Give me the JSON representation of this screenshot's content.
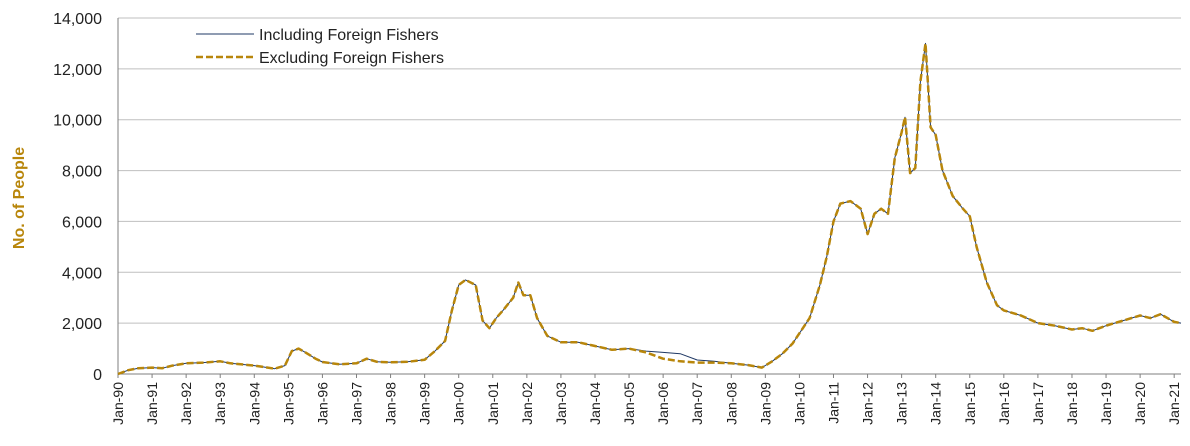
{
  "chart_data": {
    "type": "line",
    "title": "",
    "xlabel": "",
    "ylabel": "No. of People",
    "ylim": [
      0,
      14000
    ],
    "yticks": [
      "0",
      "2,000",
      "4,000",
      "6,000",
      "8,000",
      "10,000",
      "12,000",
      "14,000"
    ],
    "xticks": [
      "Jan-90",
      "Jan-91",
      "Jan-92",
      "Jan-93",
      "Jan-94",
      "Jan-95",
      "Jan-96",
      "Jan-97",
      "Jan-98",
      "Jan-99",
      "Jan-00",
      "Jan-01",
      "Jan-02",
      "Jan-03",
      "Jan-04",
      "Jan-05",
      "Jan-06",
      "Jan-07",
      "Jan-08",
      "Jan-09",
      "Jan-10",
      "Jan-11",
      "Jan-12",
      "Jan-13",
      "Jan-14",
      "Jan-15",
      "Jan-16",
      "Jan-17",
      "Jan-18",
      "Jan-19",
      "Jan-20",
      "Jan-21"
    ],
    "grid": true,
    "legend_position": "top-left",
    "series": [
      {
        "name": "Including Foreign Fishers",
        "color": "#1f3864",
        "style": "solid",
        "points": [
          [
            1990.0,
            0
          ],
          [
            1990.3,
            150
          ],
          [
            1990.6,
            230
          ],
          [
            1991.0,
            250
          ],
          [
            1991.3,
            230
          ],
          [
            1991.6,
            330
          ],
          [
            1992.0,
            420
          ],
          [
            1992.5,
            450
          ],
          [
            1993.0,
            500
          ],
          [
            1993.3,
            420
          ],
          [
            1993.6,
            380
          ],
          [
            1994.0,
            330
          ],
          [
            1994.3,
            270
          ],
          [
            1994.6,
            210
          ],
          [
            1994.9,
            330
          ],
          [
            1995.1,
            900
          ],
          [
            1995.3,
            1000
          ],
          [
            1995.5,
            850
          ],
          [
            1995.8,
            600
          ],
          [
            1996.0,
            470
          ],
          [
            1996.5,
            380
          ],
          [
            1997.0,
            420
          ],
          [
            1997.3,
            600
          ],
          [
            1997.6,
            480
          ],
          [
            1998.0,
            460
          ],
          [
            1998.5,
            480
          ],
          [
            1999.0,
            560
          ],
          [
            1999.3,
            900
          ],
          [
            1999.6,
            1300
          ],
          [
            1999.8,
            2500
          ],
          [
            2000.0,
            3500
          ],
          [
            2000.2,
            3700
          ],
          [
            2000.5,
            3500
          ],
          [
            2000.7,
            2100
          ],
          [
            2000.9,
            1800
          ],
          [
            2001.1,
            2200
          ],
          [
            2001.3,
            2500
          ],
          [
            2001.6,
            3000
          ],
          [
            2001.75,
            3600
          ],
          [
            2001.9,
            3100
          ],
          [
            2002.1,
            3100
          ],
          [
            2002.3,
            2200
          ],
          [
            2002.6,
            1500
          ],
          [
            2003.0,
            1250
          ],
          [
            2003.5,
            1250
          ],
          [
            2004.0,
            1100
          ],
          [
            2004.5,
            950
          ],
          [
            2005.0,
            1000
          ],
          [
            2005.5,
            900
          ],
          [
            2006.0,
            850
          ],
          [
            2006.5,
            800
          ],
          [
            2007.0,
            550
          ],
          [
            2007.5,
            500
          ],
          [
            2008.0,
            420
          ],
          [
            2008.5,
            350
          ],
          [
            2008.9,
            250
          ],
          [
            2009.2,
            500
          ],
          [
            2009.5,
            800
          ],
          [
            2009.8,
            1200
          ],
          [
            2010.0,
            1600
          ],
          [
            2010.3,
            2200
          ],
          [
            2010.6,
            3500
          ],
          [
            2010.8,
            4600
          ],
          [
            2011.0,
            6000
          ],
          [
            2011.2,
            6700
          ],
          [
            2011.5,
            6800
          ],
          [
            2011.8,
            6500
          ],
          [
            2012.0,
            5500
          ],
          [
            2012.2,
            6300
          ],
          [
            2012.4,
            6500
          ],
          [
            2012.6,
            6300
          ],
          [
            2012.8,
            8500
          ],
          [
            2013.0,
            9500
          ],
          [
            2013.1,
            10100
          ],
          [
            2013.25,
            7900
          ],
          [
            2013.4,
            8100
          ],
          [
            2013.55,
            11500
          ],
          [
            2013.7,
            13000
          ],
          [
            2013.85,
            9700
          ],
          [
            2014.0,
            9400
          ],
          [
            2014.2,
            8000
          ],
          [
            2014.5,
            7000
          ],
          [
            2014.8,
            6500
          ],
          [
            2015.0,
            6200
          ],
          [
            2015.2,
            5000
          ],
          [
            2015.5,
            3600
          ],
          [
            2015.8,
            2700
          ],
          [
            2016.0,
            2500
          ],
          [
            2016.5,
            2300
          ],
          [
            2017.0,
            2000
          ],
          [
            2017.5,
            1900
          ],
          [
            2018.0,
            1750
          ],
          [
            2018.3,
            1800
          ],
          [
            2018.6,
            1700
          ],
          [
            2019.0,
            1900
          ],
          [
            2019.5,
            2100
          ],
          [
            2020.0,
            2300
          ],
          [
            2020.3,
            2200
          ],
          [
            2020.6,
            2350
          ],
          [
            2021.0,
            2050
          ],
          [
            2021.2,
            2000
          ]
        ]
      },
      {
        "name": "Excluding Foreign Fishers",
        "color": "#b8860b",
        "style": "dashed",
        "points": [
          [
            1990.0,
            0
          ],
          [
            1990.3,
            150
          ],
          [
            1990.6,
            230
          ],
          [
            1991.0,
            250
          ],
          [
            1991.3,
            230
          ],
          [
            1991.6,
            330
          ],
          [
            1992.0,
            420
          ],
          [
            1992.5,
            450
          ],
          [
            1993.0,
            500
          ],
          [
            1993.3,
            420
          ],
          [
            1993.6,
            380
          ],
          [
            1994.0,
            330
          ],
          [
            1994.3,
            270
          ],
          [
            1994.6,
            210
          ],
          [
            1994.9,
            330
          ],
          [
            1995.1,
            900
          ],
          [
            1995.3,
            1000
          ],
          [
            1995.5,
            850
          ],
          [
            1995.8,
            600
          ],
          [
            1996.0,
            470
          ],
          [
            1996.5,
            380
          ],
          [
            1997.0,
            420
          ],
          [
            1997.3,
            600
          ],
          [
            1997.6,
            480
          ],
          [
            1998.0,
            460
          ],
          [
            1998.5,
            480
          ],
          [
            1999.0,
            560
          ],
          [
            1999.3,
            900
          ],
          [
            1999.6,
            1300
          ],
          [
            1999.8,
            2500
          ],
          [
            2000.0,
            3500
          ],
          [
            2000.2,
            3700
          ],
          [
            2000.5,
            3500
          ],
          [
            2000.7,
            2100
          ],
          [
            2000.9,
            1800
          ],
          [
            2001.1,
            2200
          ],
          [
            2001.3,
            2500
          ],
          [
            2001.6,
            3000
          ],
          [
            2001.75,
            3600
          ],
          [
            2001.9,
            3100
          ],
          [
            2002.1,
            3100
          ],
          [
            2002.3,
            2200
          ],
          [
            2002.6,
            1500
          ],
          [
            2003.0,
            1250
          ],
          [
            2003.5,
            1250
          ],
          [
            2004.0,
            1100
          ],
          [
            2004.5,
            950
          ],
          [
            2005.0,
            1000
          ],
          [
            2005.5,
            850
          ],
          [
            2006.0,
            600
          ],
          [
            2006.5,
            500
          ],
          [
            2007.0,
            450
          ],
          [
            2007.5,
            450
          ],
          [
            2008.0,
            420
          ],
          [
            2008.5,
            350
          ],
          [
            2008.9,
            250
          ],
          [
            2009.2,
            500
          ],
          [
            2009.5,
            800
          ],
          [
            2009.8,
            1200
          ],
          [
            2010.0,
            1600
          ],
          [
            2010.3,
            2200
          ],
          [
            2010.6,
            3500
          ],
          [
            2010.8,
            4600
          ],
          [
            2011.0,
            6000
          ],
          [
            2011.2,
            6700
          ],
          [
            2011.5,
            6800
          ],
          [
            2011.8,
            6500
          ],
          [
            2012.0,
            5500
          ],
          [
            2012.2,
            6300
          ],
          [
            2012.4,
            6500
          ],
          [
            2012.6,
            6300
          ],
          [
            2012.8,
            8500
          ],
          [
            2013.0,
            9500
          ],
          [
            2013.1,
            10100
          ],
          [
            2013.25,
            7900
          ],
          [
            2013.4,
            8100
          ],
          [
            2013.55,
            11500
          ],
          [
            2013.7,
            13000
          ],
          [
            2013.85,
            9700
          ],
          [
            2014.0,
            9400
          ],
          [
            2014.2,
            8000
          ],
          [
            2014.5,
            7000
          ],
          [
            2014.8,
            6500
          ],
          [
            2015.0,
            6200
          ],
          [
            2015.2,
            5000
          ],
          [
            2015.5,
            3600
          ],
          [
            2015.8,
            2700
          ],
          [
            2016.0,
            2500
          ],
          [
            2016.5,
            2300
          ],
          [
            2017.0,
            2000
          ],
          [
            2017.5,
            1900
          ],
          [
            2018.0,
            1750
          ],
          [
            2018.3,
            1800
          ],
          [
            2018.6,
            1700
          ],
          [
            2019.0,
            1900
          ],
          [
            2019.5,
            2100
          ],
          [
            2020.0,
            2300
          ],
          [
            2020.3,
            2200
          ],
          [
            2020.6,
            2350
          ],
          [
            2021.0,
            2050
          ],
          [
            2021.2,
            2000
          ]
        ]
      }
    ]
  }
}
